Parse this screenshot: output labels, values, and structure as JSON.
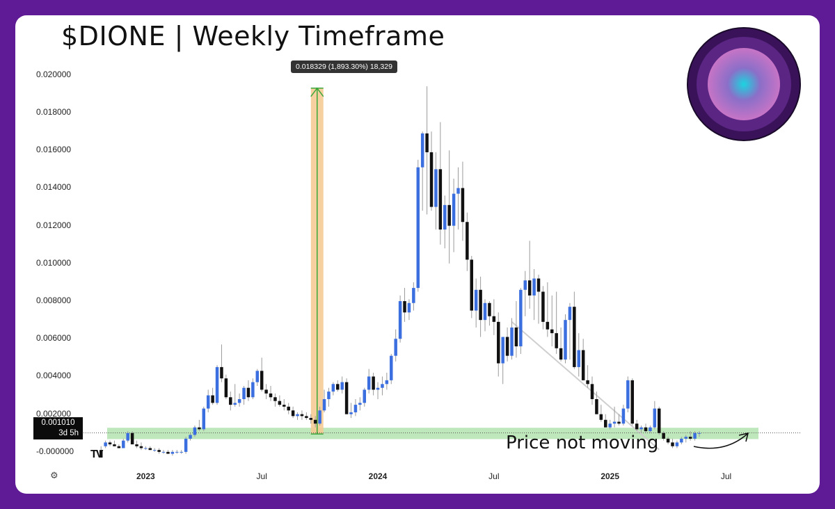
{
  "title": "$DIONE | Weekly Timeframe",
  "colors": {
    "background": "#5e1b95",
    "bull": "#3b6fe0",
    "bear": "#111111",
    "wick": "#9a9a9a",
    "support_zone": "#a9dfa6",
    "measure_fill": "#f6c88f",
    "measure_arrow": "#3aa83a",
    "trendline": "#cfcfcf"
  },
  "price_label": {
    "value": "0.001010",
    "countdown": "3d 5h"
  },
  "measure_tooltip": "0.018329 (1,893.30%) 18,329",
  "annotation": "Price not moving",
  "branding": {
    "logo_text": "TV",
    "settings_icon": "gear-icon",
    "orb_icon": "gradient-orb-icon"
  },
  "chart_data": {
    "type": "candlestick",
    "timeframe": "weekly",
    "y_ticks": [
      "0.020000",
      "0.018000",
      "0.016000",
      "0.014000",
      "0.012000",
      "0.010000",
      "0.008000",
      "0.006000",
      "0.004000",
      "0.002000",
      "-0.000000"
    ],
    "x_ticks": [
      {
        "label": "2023",
        "bold": true,
        "week": 10
      },
      {
        "label": "Jul",
        "bold": false,
        "week": 36
      },
      {
        "label": "2024",
        "bold": true,
        "week": 62
      },
      {
        "label": "Jul",
        "bold": false,
        "week": 88
      },
      {
        "label": "2025",
        "bold": true,
        "week": 114
      },
      {
        "label": "Jul",
        "bold": false,
        "week": 140
      }
    ],
    "ylim": [
      -0.0003,
      0.0204
    ],
    "xlim": [
      -0.5,
      146
    ],
    "support_zone": [
      0.00068,
      0.00128
    ],
    "measure": {
      "from_week": 47.0,
      "to_week": 49.8,
      "from_price": 0.00095,
      "to_price": 0.0193
    },
    "trendline": {
      "from_week": 92.0,
      "from_price": 0.0069,
      "to_week": 125.0,
      "to_price": 0.00012
    },
    "candles": [
      [
        0.0001,
        0.0003,
        -0.0003,
        -0.0003
      ],
      [
        0.0003,
        0.0006,
        0.0002,
        0.0005
      ],
      [
        0.0005,
        0.0006,
        0.0003,
        0.0004
      ],
      [
        0.0004,
        0.0006,
        0.0003,
        0.0003
      ],
      [
        0.0003,
        0.0004,
        0.0002,
        0.0002
      ],
      [
        0.0002,
        0.0007,
        0.0002,
        0.0006
      ],
      [
        0.0006,
        0.0011,
        0.0005,
        0.001
      ],
      [
        0.001,
        0.0011,
        0.0004,
        0.0004
      ],
      [
        0.0004,
        0.0006,
        0.0002,
        0.0003
      ],
      [
        0.0003,
        0.0005,
        0.0001,
        0.0002
      ],
      [
        0.0002,
        0.0003,
        0.0001,
        0.0002
      ],
      [
        0.0002,
        0.0003,
        0.0001,
        0.0001
      ],
      [
        0.0001,
        0.0002,
        0.0,
        0.0001
      ],
      [
        0.0001,
        0.0002,
        -0.0001,
        0.0
      ],
      [
        0.0,
        0.0001,
        -0.0001,
        0.0
      ],
      [
        0.0,
        0.0001,
        -0.0001,
        -0.0001
      ],
      [
        -0.0001,
        0.0001,
        -0.0002,
        0.0
      ],
      [
        0.0,
        0.0001,
        -0.0001,
        0.0
      ],
      [
        0.0,
        0.0001,
        -0.0001,
        0.0
      ],
      [
        0.0,
        0.0008,
        -0.0001,
        0.0007
      ],
      [
        0.0007,
        0.001,
        0.0006,
        0.0009
      ],
      [
        0.0009,
        0.0014,
        0.0008,
        0.0013
      ],
      [
        0.0013,
        0.0017,
        0.0011,
        0.0012
      ],
      [
        0.0012,
        0.0024,
        0.0011,
        0.0023
      ],
      [
        0.0023,
        0.0033,
        0.0021,
        0.003
      ],
      [
        0.003,
        0.0034,
        0.0025,
        0.0026
      ],
      [
        0.0026,
        0.0046,
        0.0025,
        0.0045
      ],
      [
        0.0045,
        0.0057,
        0.0037,
        0.0039
      ],
      [
        0.0039,
        0.0041,
        0.0028,
        0.0029
      ],
      [
        0.0029,
        0.0032,
        0.0022,
        0.0025
      ],
      [
        0.0025,
        0.0036,
        0.0024,
        0.0026
      ],
      [
        0.0026,
        0.0031,
        0.0024,
        0.0028
      ],
      [
        0.0028,
        0.0035,
        0.0025,
        0.0034
      ],
      [
        0.0034,
        0.0038,
        0.0027,
        0.0029
      ],
      [
        0.0029,
        0.0039,
        0.0028,
        0.0037
      ],
      [
        0.0037,
        0.0044,
        0.0035,
        0.0043
      ],
      [
        0.0043,
        0.005,
        0.0032,
        0.0033
      ],
      [
        0.0033,
        0.0036,
        0.0028,
        0.0031
      ],
      [
        0.0031,
        0.0035,
        0.0027,
        0.0029
      ],
      [
        0.0029,
        0.0031,
        0.0024,
        0.0027
      ],
      [
        0.0027,
        0.003,
        0.0024,
        0.0025
      ],
      [
        0.0025,
        0.0028,
        0.0022,
        0.0024
      ],
      [
        0.0024,
        0.0026,
        0.002,
        0.0022
      ],
      [
        0.0022,
        0.0024,
        0.0018,
        0.0019
      ],
      [
        0.0019,
        0.0021,
        0.0017,
        0.002
      ],
      [
        0.002,
        0.0022,
        0.0017,
        0.0019
      ],
      [
        0.0019,
        0.0021,
        0.0017,
        0.0018
      ],
      [
        0.0018,
        0.002,
        0.0015,
        0.0017
      ],
      [
        0.0017,
        0.0019,
        0.0013,
        0.0015
      ],
      [
        0.0015,
        0.0024,
        0.0014,
        0.0022
      ],
      [
        0.0022,
        0.0033,
        0.0021,
        0.0028
      ],
      [
        0.0028,
        0.0034,
        0.0024,
        0.0032
      ],
      [
        0.0032,
        0.0037,
        0.003,
        0.0036
      ],
      [
        0.0036,
        0.0038,
        0.0032,
        0.0033
      ],
      [
        0.0033,
        0.004,
        0.0031,
        0.0037
      ],
      [
        0.0037,
        0.0039,
        0.0021,
        0.002
      ],
      [
        0.002,
        0.0026,
        0.0018,
        0.0021
      ],
      [
        0.0021,
        0.0028,
        0.0019,
        0.0025
      ],
      [
        0.0025,
        0.0029,
        0.0022,
        0.0026
      ],
      [
        0.0026,
        0.0034,
        0.0024,
        0.0033
      ],
      [
        0.0033,
        0.0044,
        0.0031,
        0.004
      ],
      [
        0.004,
        0.0042,
        0.003,
        0.0033
      ],
      [
        0.0033,
        0.0037,
        0.0028,
        0.0034
      ],
      [
        0.0034,
        0.004,
        0.003,
        0.0036
      ],
      [
        0.0036,
        0.0042,
        0.0033,
        0.0038
      ],
      [
        0.0038,
        0.0052,
        0.0036,
        0.0051
      ],
      [
        0.0051,
        0.0065,
        0.0048,
        0.006
      ],
      [
        0.006,
        0.0083,
        0.0058,
        0.008
      ],
      [
        0.008,
        0.0087,
        0.0069,
        0.0074
      ],
      [
        0.0074,
        0.0081,
        0.007,
        0.0079
      ],
      [
        0.0079,
        0.009,
        0.0075,
        0.0087
      ],
      [
        0.0087,
        0.0155,
        0.0085,
        0.0151
      ],
      [
        0.0151,
        0.017,
        0.0128,
        0.0169
      ],
      [
        0.0169,
        0.0194,
        0.0126,
        0.0159
      ],
      [
        0.0159,
        0.017,
        0.0128,
        0.013
      ],
      [
        0.013,
        0.0159,
        0.0118,
        0.015
      ],
      [
        0.015,
        0.0175,
        0.011,
        0.0118
      ],
      [
        0.0118,
        0.0136,
        0.0108,
        0.0131
      ],
      [
        0.0131,
        0.016,
        0.01,
        0.012
      ],
      [
        0.012,
        0.0145,
        0.0106,
        0.0137
      ],
      [
        0.0137,
        0.0151,
        0.0118,
        0.014
      ],
      [
        0.014,
        0.0154,
        0.0112,
        0.0122
      ],
      [
        0.0122,
        0.0127,
        0.0096,
        0.0102
      ],
      [
        0.0102,
        0.0104,
        0.0071,
        0.0075
      ],
      [
        0.0075,
        0.0092,
        0.0066,
        0.0086
      ],
      [
        0.0086,
        0.0093,
        0.0061,
        0.007
      ],
      [
        0.007,
        0.0081,
        0.0064,
        0.0079
      ],
      [
        0.0079,
        0.008,
        0.0067,
        0.0072
      ],
      [
        0.0072,
        0.0081,
        0.0062,
        0.0069
      ],
      [
        0.0069,
        0.0074,
        0.004,
        0.0047
      ],
      [
        0.0047,
        0.0061,
        0.0036,
        0.0061
      ],
      [
        0.0061,
        0.0066,
        0.0048,
        0.0051
      ],
      [
        0.0051,
        0.0071,
        0.0049,
        0.0066
      ],
      [
        0.0066,
        0.008,
        0.005,
        0.0056
      ],
      [
        0.0056,
        0.0087,
        0.0052,
        0.0086
      ],
      [
        0.0086,
        0.0096,
        0.0072,
        0.0091
      ],
      [
        0.0091,
        0.0112,
        0.0076,
        0.0083
      ],
      [
        0.0083,
        0.0097,
        0.007,
        0.0092
      ],
      [
        0.0092,
        0.0094,
        0.0068,
        0.0085
      ],
      [
        0.0085,
        0.0088,
        0.0065,
        0.0069
      ],
      [
        0.0069,
        0.009,
        0.0061,
        0.0065
      ],
      [
        0.0065,
        0.0083,
        0.0056,
        0.0063
      ],
      [
        0.0063,
        0.0085,
        0.0052,
        0.0055
      ],
      [
        0.0055,
        0.0066,
        0.0048,
        0.0049
      ],
      [
        0.0049,
        0.0073,
        0.0047,
        0.007
      ],
      [
        0.007,
        0.0079,
        0.0049,
        0.0077
      ],
      [
        0.0077,
        0.0085,
        0.0044,
        0.0045
      ],
      [
        0.0045,
        0.0063,
        0.004,
        0.0054
      ],
      [
        0.0054,
        0.006,
        0.0038,
        0.0038
      ],
      [
        0.0038,
        0.0046,
        0.0034,
        0.0036
      ],
      [
        0.0036,
        0.004,
        0.0025,
        0.0028
      ],
      [
        0.0028,
        0.0032,
        0.002,
        0.002
      ],
      [
        0.002,
        0.0025,
        0.0016,
        0.0017
      ],
      [
        0.0017,
        0.002,
        0.0013,
        0.0013
      ],
      [
        0.0013,
        0.0017,
        0.0012,
        0.0015
      ],
      [
        0.0015,
        0.0024,
        0.0013,
        0.0016
      ],
      [
        0.0016,
        0.002,
        0.0014,
        0.0015
      ],
      [
        0.0015,
        0.0025,
        0.0014,
        0.0023
      ],
      [
        0.0023,
        0.004,
        0.0021,
        0.0038
      ],
      [
        0.0038,
        0.0039,
        0.0014,
        0.0015
      ],
      [
        0.0015,
        0.0017,
        0.0011,
        0.0012
      ],
      [
        0.0012,
        0.0014,
        0.001,
        0.0013
      ],
      [
        0.0013,
        0.0015,
        0.001,
        0.0011
      ],
      [
        0.0011,
        0.0014,
        0.001,
        0.0013
      ],
      [
        0.0013,
        0.0027,
        0.0012,
        0.0023
      ],
      [
        0.0023,
        0.0024,
        0.0009,
        0.001
      ],
      [
        0.001,
        0.0011,
        0.0006,
        0.0007
      ],
      [
        0.0007,
        0.0008,
        0.0004,
        0.0005
      ],
      [
        0.0005,
        0.0007,
        0.0002,
        0.0003
      ],
      [
        0.0003,
        0.0006,
        0.0002,
        0.0005
      ],
      [
        0.0005,
        0.0008,
        0.0004,
        0.0007
      ],
      [
        0.0007,
        0.0009,
        0.0005,
        0.0008
      ],
      [
        0.0008,
        0.0011,
        0.0006,
        0.0007
      ],
      [
        0.0007,
        0.0011,
        0.0006,
        0.001
      ],
      [
        0.001,
        0.0011,
        0.0008,
        0.001
      ]
    ]
  }
}
